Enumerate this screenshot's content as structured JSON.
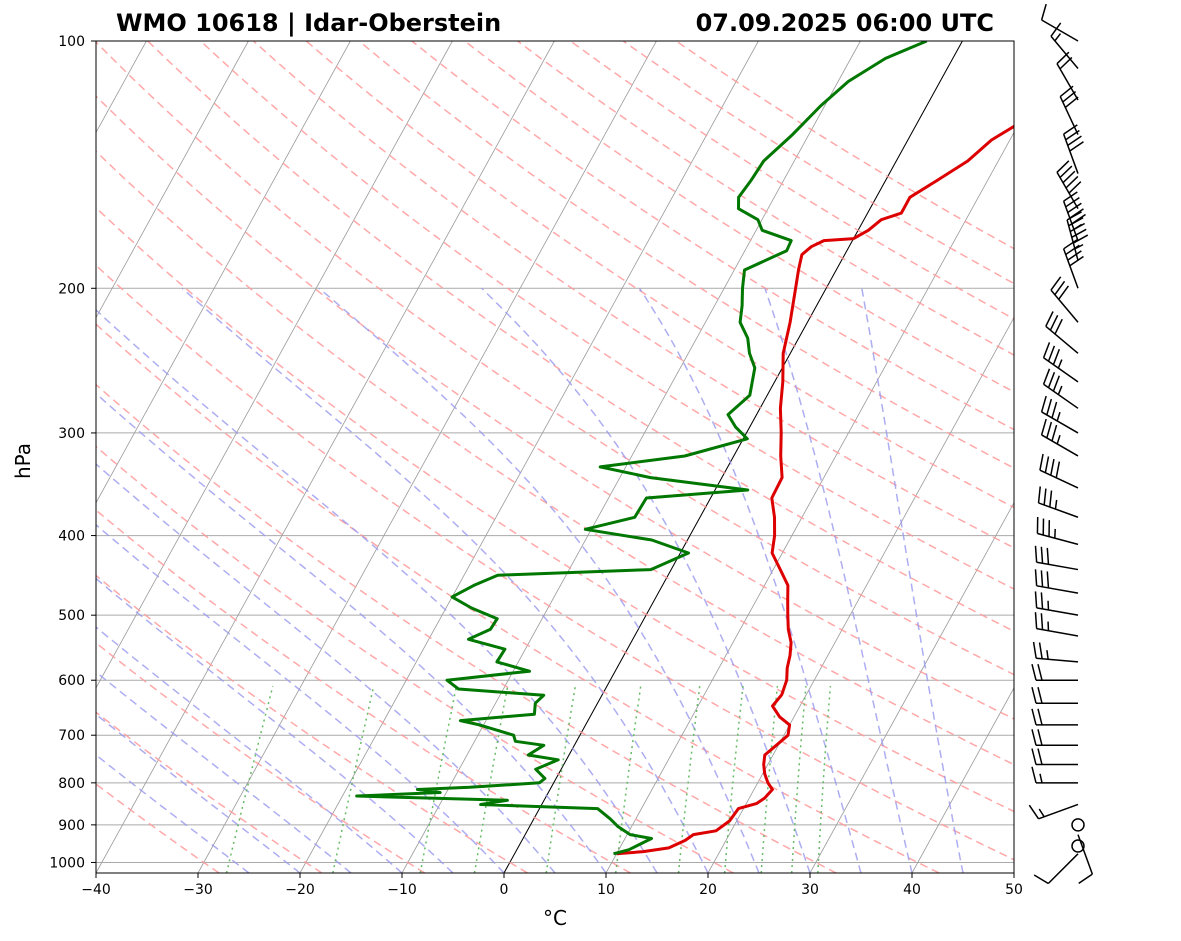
{
  "chart_data": {
    "type": "line",
    "chart_kind": "skew-T log-P sounding",
    "title_left": "WMO 10618 | Idar-Oberstein",
    "title_right": "07.09.2025 06:00 UTC",
    "xlabel": "°C",
    "ylabel": "hPa",
    "xlim": [
      -40,
      50
    ],
    "ylim_hpa": [
      1030,
      100
    ],
    "y_scale": "log",
    "grid": true,
    "x_ticks": [
      -40,
      -30,
      -20,
      -10,
      0,
      10,
      20,
      30,
      40,
      50
    ],
    "x_tick_labels": [
      "−40",
      "−30",
      "−20",
      "−10",
      "0",
      "10",
      "20",
      "30",
      "40",
      "50"
    ],
    "y_ticks": [
      1000,
      900,
      800,
      700,
      600,
      500,
      400,
      300,
      200,
      100
    ],
    "y_tick_labels": [
      "1000",
      "900",
      "800",
      "700",
      "600",
      "500",
      "400",
      "300",
      "200",
      "100"
    ],
    "colors": {
      "temperature": "#dd0000",
      "dewpoint": "#007700",
      "dry_adiabats": "#ff9999",
      "moist_adiabats": "#9999ee",
      "mixing_ratio": "#66bb66",
      "isotherms": "#999999",
      "zero_isotherm": "#000000",
      "grid": "#aaaaaa"
    },
    "series": [
      {
        "role": "temperature",
        "points": [
          [
            976,
            10.0
          ],
          [
            970,
            12.5
          ],
          [
            960,
            14.8
          ],
          [
            940,
            16.0
          ],
          [
            925,
            16.5
          ],
          [
            915,
            18.5
          ],
          [
            890,
            19.3
          ],
          [
            860,
            19.5
          ],
          [
            848,
            21.0
          ],
          [
            835,
            21.5
          ],
          [
            815,
            21.8
          ],
          [
            800,
            21.0
          ],
          [
            780,
            20.2
          ],
          [
            760,
            19.6
          ],
          [
            740,
            19.2
          ],
          [
            720,
            19.8
          ],
          [
            700,
            20.4
          ],
          [
            680,
            20.0
          ],
          [
            665,
            18.6
          ],
          [
            645,
            17.3
          ],
          [
            625,
            17.6
          ],
          [
            600,
            17.3
          ],
          [
            580,
            16.7
          ],
          [
            560,
            16.3
          ],
          [
            540,
            15.7
          ],
          [
            520,
            14.7
          ],
          [
            500,
            13.9
          ],
          [
            480,
            13.1
          ],
          [
            460,
            12.3
          ],
          [
            440,
            10.7
          ],
          [
            420,
            9.0
          ],
          [
            400,
            8.3
          ],
          [
            380,
            7.3
          ],
          [
            360,
            6.0
          ],
          [
            340,
            5.9
          ],
          [
            320,
            4.6
          ],
          [
            300,
            3.4
          ],
          [
            280,
            2.0
          ],
          [
            260,
            0.8
          ],
          [
            240,
            -0.7
          ],
          [
            220,
            -1.7
          ],
          [
            200,
            -3.0
          ],
          [
            190,
            -3.7
          ],
          [
            182,
            -4.2
          ],
          [
            178,
            -3.7
          ],
          [
            175,
            -2.8
          ],
          [
            174,
            0.0
          ],
          [
            170,
            1.0
          ],
          [
            165,
            1.7
          ],
          [
            162,
            3.3
          ],
          [
            155,
            3.3
          ],
          [
            148,
            5.0
          ],
          [
            140,
            7.0
          ],
          [
            132,
            8.2
          ],
          [
            125,
            10.3
          ],
          [
            118,
            11.0
          ],
          [
            112,
            12.1
          ],
          [
            106,
            12.3
          ],
          [
            101,
            13.5
          ],
          [
            100,
            15.0
          ]
        ]
      },
      {
        "role": "dewpoint",
        "points": [
          [
            976,
            9.7
          ],
          [
            965,
            11.0
          ],
          [
            935,
            12.6
          ],
          [
            925,
            10.3
          ],
          [
            905,
            8.7
          ],
          [
            885,
            7.5
          ],
          [
            860,
            5.7
          ],
          [
            850,
            -6.0
          ],
          [
            840,
            -3.6
          ],
          [
            830,
            -18.6
          ],
          [
            822,
            -10.6
          ],
          [
            815,
            -13.0
          ],
          [
            810,
            -8.0
          ],
          [
            800,
            -1.4
          ],
          [
            790,
            -1.1
          ],
          [
            780,
            -1.8
          ],
          [
            770,
            -2.5
          ],
          [
            750,
            -0.8
          ],
          [
            740,
            -4.0
          ],
          [
            720,
            -3.0
          ],
          [
            712,
            -6.0
          ],
          [
            700,
            -6.5
          ],
          [
            680,
            -10.4
          ],
          [
            672,
            -12.5
          ],
          [
            660,
            -5.6
          ],
          [
            640,
            -6.1
          ],
          [
            626,
            -5.7
          ],
          [
            615,
            -14.4
          ],
          [
            600,
            -16.0
          ],
          [
            585,
            -8.4
          ],
          [
            570,
            -12.1
          ],
          [
            550,
            -12.0
          ],
          [
            535,
            -16.1
          ],
          [
            520,
            -14.5
          ],
          [
            505,
            -14.4
          ],
          [
            490,
            -17.5
          ],
          [
            475,
            -20.0
          ],
          [
            460,
            -18.5
          ],
          [
            447,
            -16.7
          ],
          [
            440,
            -2.0
          ],
          [
            420,
            0.8
          ],
          [
            405,
            -3.5
          ],
          [
            393,
            -10.6
          ],
          [
            380,
            -6.4
          ],
          [
            360,
            -6.3
          ],
          [
            352,
            3.2
          ],
          [
            340,
            -7.0
          ],
          [
            330,
            -12.5
          ],
          [
            320,
            -4.8
          ],
          [
            305,
            0.4
          ],
          [
            295,
            -1.4
          ],
          [
            285,
            -2.8
          ],
          [
            270,
            -1.7
          ],
          [
            250,
            -2.7
          ],
          [
            240,
            -4.0
          ],
          [
            230,
            -5.0
          ],
          [
            220,
            -6.6
          ],
          [
            210,
            -7.3
          ],
          [
            200,
            -8.2
          ],
          [
            190,
            -9.0
          ],
          [
            180,
            -5.9
          ],
          [
            175,
            -6.0
          ],
          [
            170,
            -9.4
          ],
          [
            165,
            -10.4
          ],
          [
            160,
            -12.9
          ],
          [
            155,
            -13.5
          ],
          [
            148,
            -13.2
          ],
          [
            140,
            -13.0
          ],
          [
            130,
            -11.6
          ],
          [
            120,
            -10.4
          ],
          [
            112,
            -9.0
          ],
          [
            105,
            -6.6
          ],
          [
            100,
            -3.5
          ]
        ]
      }
    ],
    "wind_barbs": [
      [
        976,
        225,
        12
      ],
      [
        955,
        180,
        1
      ],
      [
        925,
        160,
        8
      ],
      [
        900,
        175,
        2
      ],
      [
        850,
        250,
        15
      ],
      [
        800,
        270,
        16
      ],
      [
        760,
        270,
        20
      ],
      [
        720,
        270,
        20
      ],
      [
        680,
        270,
        20
      ],
      [
        640,
        270,
        20
      ],
      [
        600,
        270,
        22
      ],
      [
        570,
        275,
        25
      ],
      [
        530,
        280,
        25
      ],
      [
        500,
        280,
        27
      ],
      [
        470,
        280,
        30
      ],
      [
        440,
        280,
        32
      ],
      [
        410,
        285,
        35
      ],
      [
        380,
        290,
        35
      ],
      [
        350,
        295,
        40
      ],
      [
        320,
        300,
        35
      ],
      [
        300,
        300,
        35
      ],
      [
        280,
        305,
        35
      ],
      [
        260,
        305,
        33
      ],
      [
        240,
        310,
        30
      ],
      [
        220,
        320,
        30
      ],
      [
        200,
        340,
        40
      ],
      [
        185,
        345,
        55
      ],
      [
        175,
        340,
        55
      ],
      [
        160,
        330,
        50
      ],
      [
        145,
        340,
        40
      ],
      [
        130,
        335,
        30
      ],
      [
        118,
        330,
        20
      ],
      [
        108,
        320,
        15
      ],
      [
        100,
        300,
        10
      ]
    ]
  }
}
